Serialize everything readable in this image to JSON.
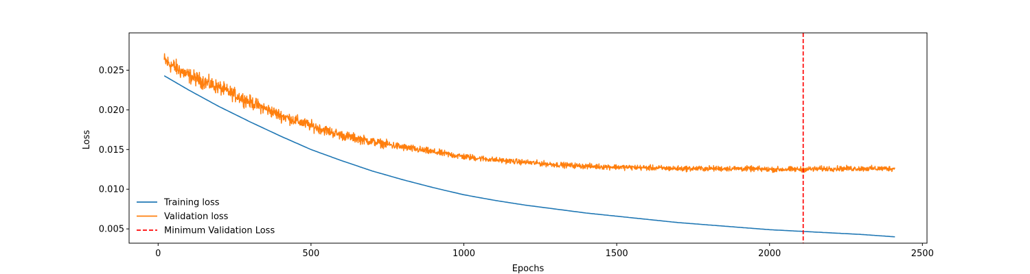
{
  "chart_data": {
    "type": "line",
    "title": "",
    "xlabel": "Epochs",
    "ylabel": "Loss",
    "xlim": [
      -95,
      2515
    ],
    "ylim": [
      0.0032,
      0.0297
    ],
    "xticks": [
      0,
      500,
      1000,
      1500,
      2000,
      2500
    ],
    "xtick_labels": [
      "0",
      "500",
      "1000",
      "1500",
      "2000",
      "2500"
    ],
    "yticks": [
      0.005,
      0.01,
      0.015,
      0.02,
      0.025
    ],
    "ytick_labels": [
      "0.005",
      "0.010",
      "0.015",
      "0.020",
      "0.025"
    ],
    "grid": false,
    "legend_position": "lower-left",
    "series": [
      {
        "name": "Training loss",
        "color": "#1f77b4",
        "style": "solid",
        "x": [
          20,
          100,
          200,
          300,
          400,
          500,
          600,
          700,
          800,
          900,
          1000,
          1100,
          1200,
          1300,
          1400,
          1500,
          1600,
          1700,
          1800,
          1900,
          2000,
          2100,
          2200,
          2300,
          2410
        ],
        "y": [
          0.0243,
          0.0225,
          0.0204,
          0.0185,
          0.0167,
          0.015,
          0.0136,
          0.0123,
          0.0112,
          0.0102,
          0.0093,
          0.0086,
          0.008,
          0.0075,
          0.007,
          0.0066,
          0.0062,
          0.0058,
          0.0055,
          0.0052,
          0.0049,
          0.0047,
          0.0045,
          0.0043,
          0.004
        ]
      },
      {
        "name": "Validation loss",
        "color": "#ff7f0e",
        "style": "solid",
        "noise_decay_epochs": 600,
        "x": [
          20,
          100,
          200,
          300,
          400,
          500,
          600,
          700,
          800,
          900,
          1000,
          1100,
          1200,
          1300,
          1400,
          1500,
          1600,
          1700,
          1800,
          1900,
          2000,
          2100,
          2200,
          2300,
          2410
        ],
        "y": [
          0.0262,
          0.0243,
          0.0228,
          0.021,
          0.0193,
          0.018,
          0.0168,
          0.016,
          0.0153,
          0.0147,
          0.0141,
          0.0137,
          0.0134,
          0.0131,
          0.0129,
          0.0128,
          0.0127,
          0.0126,
          0.0126,
          0.0126,
          0.0125,
          0.0125,
          0.0126,
          0.0126,
          0.0126
        ],
        "noise_amplitude": [
          0.0016,
          0.0014,
          0.0013,
          0.0012,
          0.0011,
          0.001,
          0.0009,
          0.0008,
          0.0007,
          0.0006,
          0.0006,
          0.0005,
          0.0005,
          0.0005,
          0.0005,
          0.0005,
          0.0005,
          0.0005,
          0.0005,
          0.0005,
          0.0005,
          0.0005,
          0.0005,
          0.0005,
          0.0005
        ]
      }
    ],
    "vlines": [
      {
        "name": "Minimum Validation Loss",
        "x": 2110,
        "color": "#ff0000",
        "style": "dashed"
      }
    ]
  }
}
